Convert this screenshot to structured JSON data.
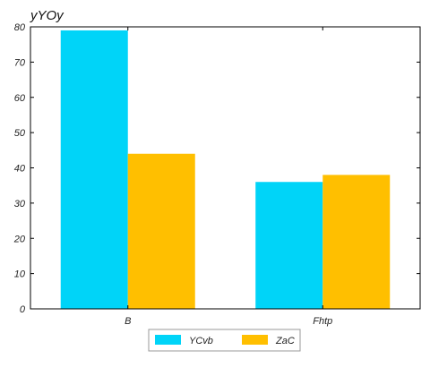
{
  "chart_data": {
    "type": "bar",
    "title": "yYOy",
    "xlabel": "",
    "ylabel": "",
    "categories": [
      "B",
      "Fhtp"
    ],
    "series": [
      {
        "name": "YCvb",
        "values": [
          79,
          36
        ],
        "color": "#00d4f8"
      },
      {
        "name": "ZaC",
        "values": [
          44,
          38
        ],
        "color": "#ffbf00"
      }
    ],
    "ylim": [
      0,
      80
    ],
    "yticks": [
      0,
      10,
      20,
      30,
      40,
      50,
      60,
      70,
      80
    ],
    "grid": false,
    "legend_position": "bottom-center"
  }
}
